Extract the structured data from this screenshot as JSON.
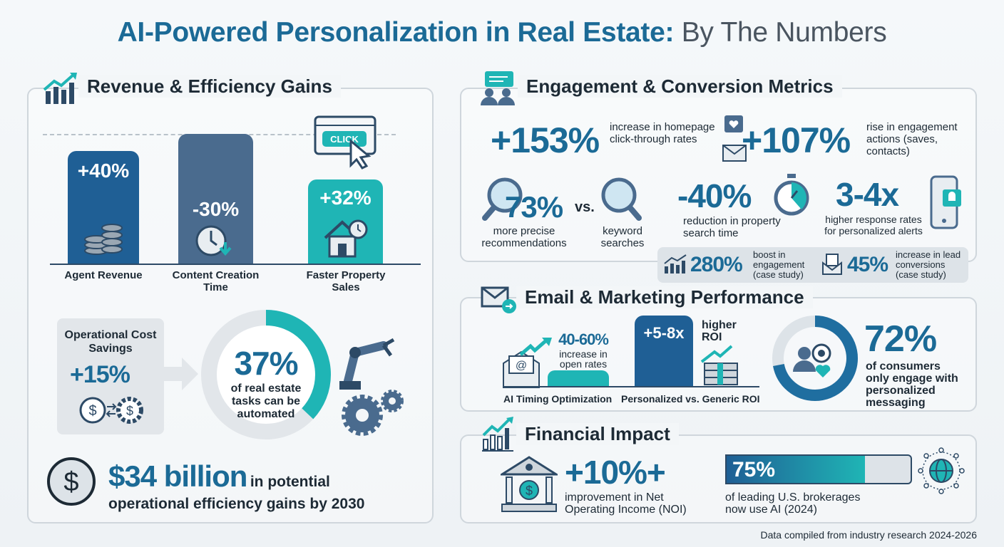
{
  "title": {
    "main": "AI-Powered Personalization in Real Estate:",
    "sub": "By The Numbers"
  },
  "colors": {
    "primary": "#1b6a96",
    "dark_blue": "#1f5f95",
    "slate": "#4a6b8e",
    "teal": "#1fb5b5",
    "gray": "#dde3e8"
  },
  "revenue": {
    "title": "Revenue & Efficiency Gains",
    "icon": "growth-chart-icon",
    "bars": [
      {
        "value": "+40%",
        "label": "Agent Revenue",
        "icon": "coins-icon"
      },
      {
        "value": "-30%",
        "label": "Content Creation Time",
        "icon": "clock-down-icon"
      },
      {
        "value": "+32%",
        "label": "Faster Property Sales",
        "icon": "house-clock-icon"
      }
    ],
    "click_label": "CLICK",
    "cost_savings": {
      "label": "Operational Cost Savings",
      "value": "+15%"
    },
    "automation": {
      "value": "37%",
      "percent": 37,
      "label": "of real estate tasks can be automated"
    },
    "billion": {
      "value": "$34 billion",
      "label1": "in potential",
      "label2": "operational efficiency gains by 2030"
    }
  },
  "engagement": {
    "title": "Engagement & Conversion Metrics",
    "m1": {
      "value": "+153%",
      "label": "increase in homepage click-through rates"
    },
    "m2": {
      "value": "+107%",
      "label": "rise in engagement actions (saves, contacts)"
    },
    "m3": {
      "value": "73%",
      "vs": "vs.",
      "label": "more precise recommendations",
      "vs_label": "keyword searches"
    },
    "m4": {
      "value": "-40%",
      "label": "reduction in property search time"
    },
    "m5": {
      "value": "3-4x",
      "label": "higher response rates for personalized alerts"
    },
    "c1": {
      "value": "280%",
      "label": "boost in engagement",
      "note": "(case study)"
    },
    "c2": {
      "value": "45%",
      "label": "increase in lead conversions",
      "note": "(case study)"
    }
  },
  "email": {
    "title": "Email & Marketing Performance",
    "open": {
      "value": "40-60%",
      "label": "increase in open rates",
      "caption": "AI Timing Optimization"
    },
    "roi": {
      "value": "+5-8x",
      "label": "higher ROI",
      "caption": "Personalized vs. Generic ROI"
    },
    "consumers": {
      "value": "72%",
      "percent": 72,
      "label": "of consumers only engage with personalized messaging"
    }
  },
  "financial": {
    "title": "Financial Impact",
    "noi": {
      "value": "+10%+",
      "label": "improvement in Net Operating Income (NOI)"
    },
    "brokerages": {
      "value": "75%",
      "percent": 75,
      "label": "of leading U.S. brokerages now use AI (2024)"
    }
  },
  "footer": "Data compiled from industry research 2024-2026"
}
